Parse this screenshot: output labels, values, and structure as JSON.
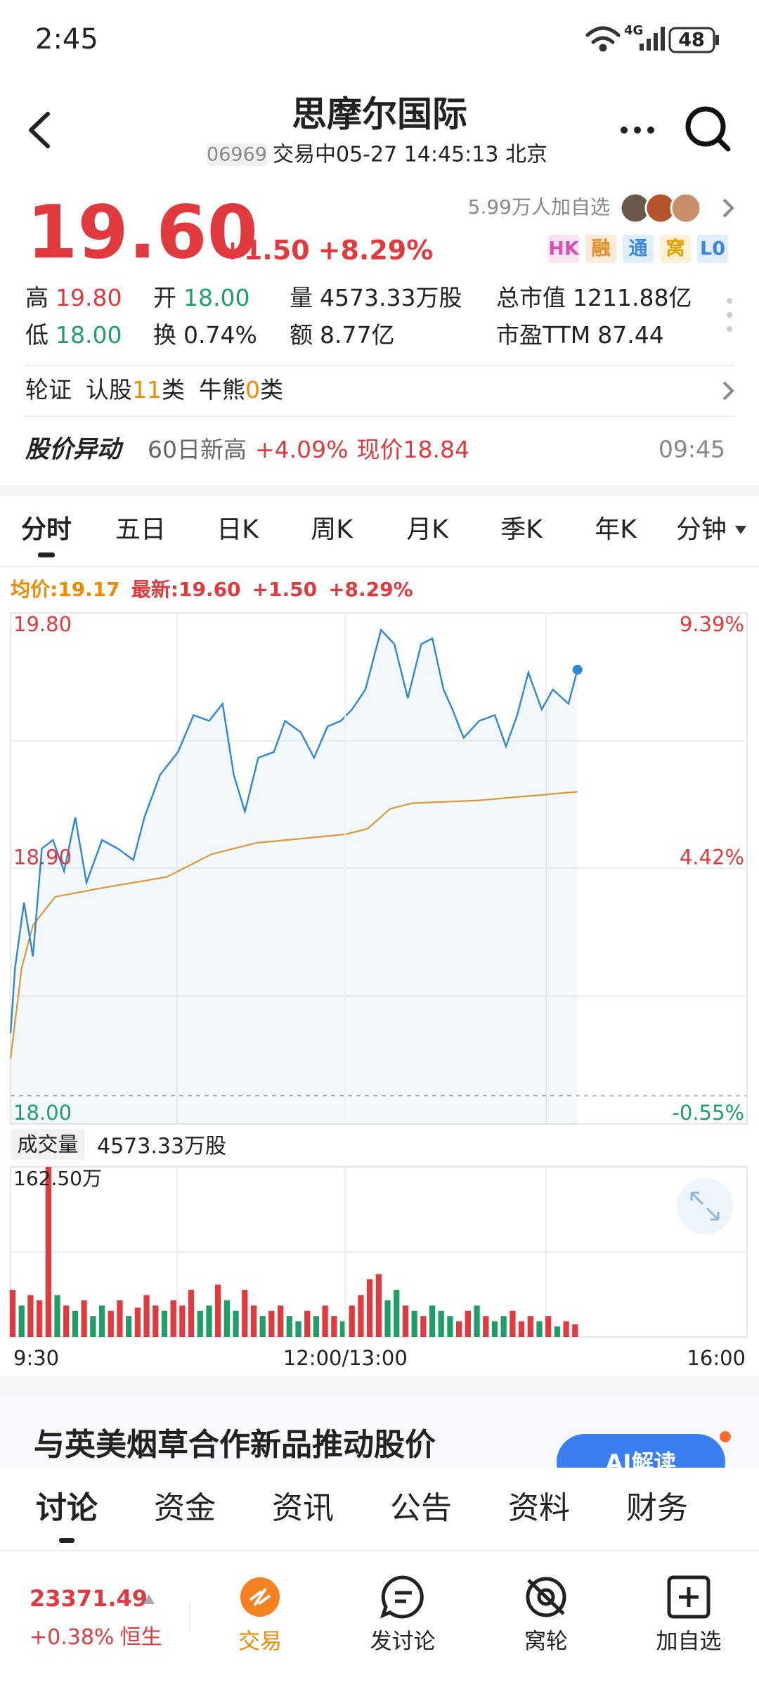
{
  "status_bar": {
    "time": "2:45",
    "network": "4G",
    "battery": "48"
  },
  "header": {
    "title": "思摩尔国际",
    "code": "06969",
    "status": "交易中05-27 14:45:13 北京"
  },
  "quote": {
    "price": "19.60",
    "change": "+1.50",
    "change_pct": "+8.29%",
    "watchers": "5.99万人加自选",
    "badges": [
      "HK",
      "融",
      "通",
      "窝",
      "L0"
    ],
    "stats": [
      {
        "label": "高",
        "value": "19.80"
      },
      {
        "label": "开",
        "value": "18.00"
      },
      {
        "label": "量",
        "value": "4573.33万股"
      },
      {
        "label": "总市值",
        "value": "1211.88亿"
      },
      {
        "label": "低",
        "value": "18.00"
      },
      {
        "label": "换",
        "value": "0.74%"
      },
      {
        "label": "额",
        "value": "8.77亿"
      },
      {
        "label": "市盈TTM",
        "value": "87.44"
      }
    ]
  },
  "warrants": {
    "label": "轮证",
    "call": "认股",
    "call_count": "11",
    "call_unit": "类",
    "cbbc": "牛熊",
    "cbbc_count": "0",
    "cbbc_unit": "类"
  },
  "alert": {
    "title": "股价异动",
    "event": "60日新高",
    "change": "+4.09%",
    "price": "现价18.84",
    "time": "09:45"
  },
  "chart_tabs": [
    "分时",
    "五日",
    "日K",
    "周K",
    "月K",
    "季K",
    "年K",
    "分钟"
  ],
  "legend": {
    "change": "+1.50",
    "change_pct": "+8.29%"
  },
  "chart_data": [
    {
      "type": "line",
      "xlim": [
        0,
        330
      ],
      "ylim": [
        18.0,
        19.8
      ],
      "yticks": [
        {
          "value": 19.8,
          "label": "19.80"
        },
        {
          "value": 18.9,
          "label": "18.90"
        },
        {
          "value": 18.0,
          "label": "18.00"
        }
      ],
      "y2lim": [
        -0.55,
        9.39
      ],
      "y2ticks": [
        {
          "value": 9.39,
          "label": "9.39%"
        },
        {
          "value": 4.42,
          "label": "4.42%"
        },
        {
          "value": -0.55,
          "label": "-0.55%"
        }
      ],
      "series": [
        {
          "name": "均价:19.17",
          "color": "#e89a2c",
          "x": [
            0,
            5,
            10,
            20,
            40,
            70,
            90,
            110,
            150,
            160,
            170,
            180,
            210,
            254
          ],
          "values": [
            18.23,
            18.55,
            18.7,
            18.8,
            18.83,
            18.87,
            18.95,
            18.99,
            19.02,
            19.04,
            19.11,
            19.13,
            19.14,
            19.17
          ]
        },
        {
          "name": "最新:19.60",
          "color": "#2f86d6",
          "x": [
            0,
            2,
            6,
            10,
            14,
            19,
            24,
            29,
            34,
            41,
            48,
            55,
            60,
            67,
            75,
            82,
            89,
            95,
            100,
            105,
            111,
            118,
            123,
            130,
            136,
            142,
            148,
            153,
            159,
            166,
            172,
            178,
            184,
            189,
            194,
            198,
            203,
            210,
            217,
            222,
            227,
            232,
            238,
            243,
            250,
            254
          ],
          "values": [
            18.32,
            18.55,
            18.78,
            18.59,
            18.97,
            19.0,
            18.89,
            19.08,
            18.85,
            19.0,
            18.97,
            18.93,
            19.08,
            19.23,
            19.31,
            19.44,
            19.42,
            19.48,
            19.23,
            19.1,
            19.29,
            19.31,
            19.42,
            19.38,
            19.29,
            19.4,
            19.42,
            19.46,
            19.53,
            19.74,
            19.69,
            19.5,
            19.69,
            19.71,
            19.53,
            19.46,
            19.36,
            19.42,
            19.44,
            19.33,
            19.44,
            19.59,
            19.46,
            19.53,
            19.48,
            19.6
          ]
        }
      ]
    },
    {
      "type": "bar",
      "title": "成交量",
      "subtitle": "4573.33万股",
      "xlim": [
        0,
        330
      ],
      "xticks": [
        {
          "value": 0,
          "label": "9:30"
        },
        {
          "value": 150,
          "label": "12:00/13:00"
        },
        {
          "value": 330,
          "label": "16:00"
        }
      ],
      "ylim": [
        0,
        162.5
      ],
      "yticks": [
        {
          "value": 162.5,
          "label": "162.50万"
        }
      ],
      "x": [
        0,
        4,
        8,
        12,
        16,
        20,
        24,
        28,
        32,
        36,
        40,
        44,
        48,
        52,
        56,
        60,
        64,
        68,
        72,
        76,
        80,
        84,
        88,
        92,
        96,
        100,
        104,
        108,
        112,
        116,
        120,
        124,
        128,
        132,
        136,
        140,
        144,
        148,
        152,
        156,
        160,
        164,
        168,
        172,
        176,
        180,
        184,
        188,
        192,
        196,
        200,
        204,
        208,
        212,
        216,
        220,
        224,
        228,
        232,
        236,
        240,
        244,
        248,
        252
      ],
      "values": [
        45,
        30,
        40,
        35,
        162.5,
        40,
        30,
        25,
        35,
        20,
        30,
        25,
        35,
        20,
        28,
        40,
        30,
        25,
        35,
        30,
        45,
        25,
        30,
        50,
        35,
        25,
        45,
        30,
        20,
        25,
        30,
        20,
        15,
        25,
        20,
        30,
        20,
        15,
        30,
        40,
        55,
        60,
        35,
        45,
        30,
        25,
        20,
        30,
        25,
        20,
        15,
        25,
        30,
        20,
        15,
        20,
        25,
        15,
        20,
        15,
        20,
        10,
        15,
        12
      ],
      "bar_colors": [
        "#e0393e",
        "#1f9e68",
        "#e0393e",
        "#e0393e",
        "#e0393e",
        "#1f9e68",
        "#e0393e",
        "#1f9e68",
        "#e0393e",
        "#1f9e68",
        "#1f9e68",
        "#e0393e",
        "#e0393e",
        "#1f9e68",
        "#e0393e",
        "#e0393e",
        "#e0393e",
        "#1f9e68",
        "#e0393e",
        "#e0393e",
        "#e0393e",
        "#1f9e68",
        "#1f9e68",
        "#e0393e",
        "#1f9e68",
        "#1f9e68",
        "#e0393e",
        "#e0393e",
        "#1f9e68",
        "#e0393e",
        "#e0393e",
        "#1f9e68",
        "#1f9e68",
        "#e0393e",
        "#1f9e68",
        "#e0393e",
        "#e0393e",
        "#1f9e68",
        "#e0393e",
        "#e0393e",
        "#e0393e",
        "#e0393e",
        "#1f9e68",
        "#1f9e68",
        "#e0393e",
        "#1f9e68",
        "#e0393e",
        "#1f9e68",
        "#1f9e68",
        "#1f9e68",
        "#e0393e",
        "#e0393e",
        "#1f9e68",
        "#e0393e",
        "#1f9e68",
        "#1f9e68",
        "#e0393e",
        "#e0393e",
        "#e0393e",
        "#1f9e68",
        "#e0393e",
        "#1f9e68",
        "#e0393e",
        "#e0393e"
      ]
    }
  ],
  "news_banner": {
    "headline": "与英美烟草合作新品推动股价",
    "button": "AI解读"
  },
  "section_tabs": [
    "讨论",
    "资金",
    "资讯",
    "公告",
    "资料",
    "财务"
  ],
  "bottom_bar": {
    "index_value": "23371.49",
    "index_change": "+0.38%",
    "index_name": "恒生",
    "actions": [
      "交易",
      "发讨论",
      "窝轮",
      "加自选"
    ]
  }
}
